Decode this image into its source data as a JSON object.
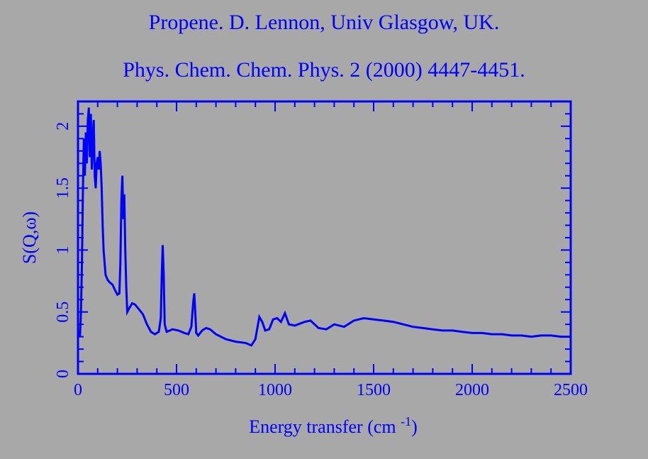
{
  "colors": {
    "background": "#a8a8a8",
    "foreground": "#0000ff"
  },
  "chart_data": {
    "type": "line",
    "title": "Propene. D. Lennon, Univ Glasgow, UK.",
    "subtitle": "Phys. Chem. Chem. Phys. 2 (2000) 4447-4451.",
    "xlabel": "Energy transfer (cm",
    "xlabel_superscript": "-1",
    "xlabel_suffix": ")",
    "ylabel": "S(Q,ω)",
    "xlim": [
      0,
      2500
    ],
    "ylim": [
      0,
      2.2
    ],
    "xticks": [
      0,
      500,
      1000,
      1500,
      2000,
      2500
    ],
    "xtick_labels": [
      "0",
      "500",
      "1000",
      "1500",
      "2000",
      "2500"
    ],
    "yticks": [
      0,
      0.5,
      1,
      1.5,
      2
    ],
    "ytick_labels": [
      "0",
      "0.5",
      "1",
      "1.5",
      "2"
    ],
    "x_minor_step": 100,
    "y_minor_step": 0.1,
    "grid": false,
    "legend": "none",
    "series": [
      {
        "color": "#0000ff",
        "points": [
          [
            10,
            0.3
          ],
          [
            15,
            0.5
          ],
          [
            20,
            0.9
          ],
          [
            25,
            1.5
          ],
          [
            30,
            1.9
          ],
          [
            35,
            1.6
          ],
          [
            40,
            1.95
          ],
          [
            45,
            1.7
          ],
          [
            50,
            2.05
          ],
          [
            55,
            2.15
          ],
          [
            60,
            1.75
          ],
          [
            65,
            2.1
          ],
          [
            70,
            1.65
          ],
          [
            75,
            1.9
          ],
          [
            80,
            2.05
          ],
          [
            85,
            1.6
          ],
          [
            90,
            1.5
          ],
          [
            95,
            1.7
          ],
          [
            100,
            1.75
          ],
          [
            105,
            1.65
          ],
          [
            110,
            1.8
          ],
          [
            115,
            1.7
          ],
          [
            120,
            1.5
          ],
          [
            125,
            1.2
          ],
          [
            130,
            1.0
          ],
          [
            140,
            0.8
          ],
          [
            150,
            0.76
          ],
          [
            160,
            0.74
          ],
          [
            175,
            0.72
          ],
          [
            190,
            0.67
          ],
          [
            200,
            0.64
          ],
          [
            210,
            0.65
          ],
          [
            215,
            0.9
          ],
          [
            220,
            1.4
          ],
          [
            225,
            1.6
          ],
          [
            230,
            1.25
          ],
          [
            235,
            1.45
          ],
          [
            240,
            1.0
          ],
          [
            245,
            0.7
          ],
          [
            250,
            0.5
          ],
          [
            260,
            0.53
          ],
          [
            275,
            0.57
          ],
          [
            290,
            0.56
          ],
          [
            310,
            0.52
          ],
          [
            330,
            0.48
          ],
          [
            350,
            0.4
          ],
          [
            370,
            0.34
          ],
          [
            390,
            0.32
          ],
          [
            410,
            0.34
          ],
          [
            420,
            0.45
          ],
          [
            425,
            0.8
          ],
          [
            430,
            1.04
          ],
          [
            435,
            0.8
          ],
          [
            440,
            0.4
          ],
          [
            450,
            0.34
          ],
          [
            480,
            0.36
          ],
          [
            510,
            0.35
          ],
          [
            540,
            0.33
          ],
          [
            560,
            0.32
          ],
          [
            575,
            0.38
          ],
          [
            585,
            0.58
          ],
          [
            590,
            0.65
          ],
          [
            595,
            0.5
          ],
          [
            600,
            0.33
          ],
          [
            610,
            0.31
          ],
          [
            630,
            0.35
          ],
          [
            650,
            0.37
          ],
          [
            670,
            0.36
          ],
          [
            700,
            0.32
          ],
          [
            750,
            0.28
          ],
          [
            800,
            0.26
          ],
          [
            850,
            0.25
          ],
          [
            880,
            0.23
          ],
          [
            900,
            0.28
          ],
          [
            920,
            0.46
          ],
          [
            935,
            0.42
          ],
          [
            950,
            0.35
          ],
          [
            970,
            0.36
          ],
          [
            990,
            0.44
          ],
          [
            1010,
            0.45
          ],
          [
            1030,
            0.42
          ],
          [
            1050,
            0.49
          ],
          [
            1070,
            0.4
          ],
          [
            1100,
            0.39
          ],
          [
            1150,
            0.42
          ],
          [
            1180,
            0.43
          ],
          [
            1220,
            0.37
          ],
          [
            1260,
            0.36
          ],
          [
            1300,
            0.4
          ],
          [
            1350,
            0.38
          ],
          [
            1400,
            0.43
          ],
          [
            1450,
            0.45
          ],
          [
            1500,
            0.44
          ],
          [
            1550,
            0.43
          ],
          [
            1600,
            0.42
          ],
          [
            1650,
            0.4
          ],
          [
            1700,
            0.38
          ],
          [
            1750,
            0.37
          ],
          [
            1800,
            0.36
          ],
          [
            1850,
            0.35
          ],
          [
            1900,
            0.35
          ],
          [
            1950,
            0.34
          ],
          [
            2000,
            0.33
          ],
          [
            2050,
            0.33
          ],
          [
            2100,
            0.32
          ],
          [
            2150,
            0.32
          ],
          [
            2200,
            0.31
          ],
          [
            2250,
            0.31
          ],
          [
            2300,
            0.3
          ],
          [
            2350,
            0.31
          ],
          [
            2400,
            0.31
          ],
          [
            2450,
            0.3
          ],
          [
            2500,
            0.3
          ]
        ]
      }
    ]
  }
}
